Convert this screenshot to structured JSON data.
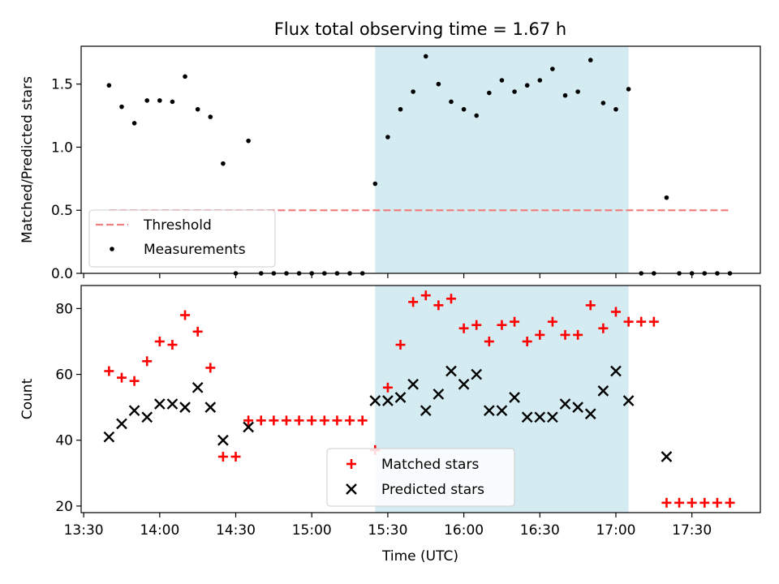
{
  "chart_data": {
    "type": "scatter",
    "title": "Flux total observing time = 1.67 h",
    "xlabel": "Time (UTC)",
    "x_ticks": [
      "13:30",
      "14:00",
      "14:30",
      "15:00",
      "15:30",
      "16:00",
      "16:30",
      "17:00",
      "17:30"
    ],
    "x_range": [
      "13:29",
      "17:57"
    ],
    "shaded_interval": {
      "start": "15:25",
      "end": "17:05",
      "color": "#add8e6"
    },
    "panels": [
      {
        "ylabel": "Matched/Predicted stars",
        "ylim": [
          0,
          1.8
        ],
        "y_ticks": [
          "0.0",
          "0.5",
          "1.0",
          "1.5"
        ],
        "legend_position": "lower-left",
        "series": [
          {
            "name": "Threshold",
            "kind": "line",
            "style": "dashed",
            "color": "#f08080",
            "x": [
              "13:40",
              "17:45"
            ],
            "y": [
              0.5,
              0.5
            ]
          },
          {
            "name": "Measurements",
            "kind": "scatter",
            "marker": "dot",
            "color": "#000000",
            "x": [
              "13:40",
              "13:45",
              "13:50",
              "13:55",
              "14:00",
              "14:05",
              "14:10",
              "14:15",
              "14:20",
              "14:25",
              "14:30",
              "14:35",
              "14:40",
              "14:45",
              "14:50",
              "14:55",
              "15:00",
              "15:05",
              "15:10",
              "15:15",
              "15:20",
              "15:25",
              "15:30",
              "15:35",
              "15:40",
              "15:45",
              "15:50",
              "15:55",
              "16:00",
              "16:05",
              "16:10",
              "16:15",
              "16:20",
              "16:25",
              "16:30",
              "16:35",
              "16:40",
              "16:45",
              "16:50",
              "16:55",
              "17:00",
              "17:05",
              "17:10",
              "17:15",
              "17:20",
              "17:25",
              "17:30",
              "17:35",
              "17:40",
              "17:45"
            ],
            "y": [
              1.49,
              1.32,
              1.19,
              1.37,
              1.37,
              1.36,
              1.56,
              1.3,
              1.24,
              0.87,
              0.0,
              1.05,
              0.0,
              0.0,
              0.0,
              0.0,
              0.0,
              0.0,
              0.0,
              0.0,
              0.0,
              0.71,
              1.08,
              1.3,
              1.44,
              1.72,
              1.5,
              1.36,
              1.3,
              1.25,
              1.43,
              1.53,
              1.44,
              1.49,
              1.53,
              1.62,
              1.41,
              1.44,
              1.69,
              1.35,
              1.3,
              1.46,
              0.0,
              0.0,
              0.6,
              0.0,
              0.0,
              0.0,
              0.0,
              0.0
            ]
          }
        ]
      },
      {
        "ylabel": "Count",
        "ylim": [
          18,
          87
        ],
        "y_ticks": [
          "20",
          "40",
          "60",
          "80"
        ],
        "legend_position": "lower-center",
        "series": [
          {
            "name": "Matched stars",
            "kind": "scatter",
            "marker": "plus",
            "color": "#ff0000",
            "x": [
              "13:40",
              "13:45",
              "13:50",
              "13:55",
              "14:00",
              "14:05",
              "14:10",
              "14:15",
              "14:20",
              "14:25",
              "14:30",
              "14:35",
              "14:40",
              "14:45",
              "14:50",
              "14:55",
              "15:00",
              "15:05",
              "15:10",
              "15:15",
              "15:20",
              "15:25",
              "15:30",
              "15:35",
              "15:40",
              "15:45",
              "15:50",
              "15:55",
              "16:00",
              "16:05",
              "16:10",
              "16:15",
              "16:20",
              "16:25",
              "16:30",
              "16:35",
              "16:40",
              "16:45",
              "16:50",
              "16:55",
              "17:00",
              "17:05",
              "17:10",
              "17:15",
              "17:20",
              "17:25",
              "17:30",
              "17:35",
              "17:40",
              "17:45"
            ],
            "y": [
              61,
              59,
              58,
              64,
              70,
              69,
              78,
              73,
              62,
              35,
              35,
              46,
              46,
              46,
              46,
              46,
              46,
              46,
              46,
              46,
              46,
              37,
              56,
              69,
              82,
              84,
              81,
              83,
              74,
              75,
              70,
              75,
              76,
              70,
              72,
              76,
              72,
              72,
              81,
              74,
              79,
              76,
              76,
              76,
              21,
              21,
              21,
              21,
              21,
              21
            ]
          },
          {
            "name": "Predicted stars",
            "kind": "scatter",
            "marker": "x",
            "color": "#000000",
            "x": [
              "13:40",
              "13:45",
              "13:50",
              "13:55",
              "14:00",
              "14:05",
              "14:10",
              "14:15",
              "14:20",
              "14:25",
              "14:35",
              "15:25",
              "15:30",
              "15:35",
              "15:40",
              "15:45",
              "15:50",
              "15:55",
              "16:00",
              "16:05",
              "16:10",
              "16:15",
              "16:20",
              "16:25",
              "16:30",
              "16:35",
              "16:40",
              "16:45",
              "16:50",
              "16:55",
              "17:00",
              "17:05",
              "17:20"
            ],
            "y": [
              41,
              45,
              49,
              47,
              51,
              51,
              50,
              56,
              50,
              40,
              44,
              52,
              52,
              53,
              57,
              49,
              54,
              61,
              57,
              60,
              49,
              49,
              53,
              47,
              47,
              47,
              51,
              50,
              48,
              55,
              61,
              52,
              35
            ]
          }
        ]
      }
    ]
  }
}
